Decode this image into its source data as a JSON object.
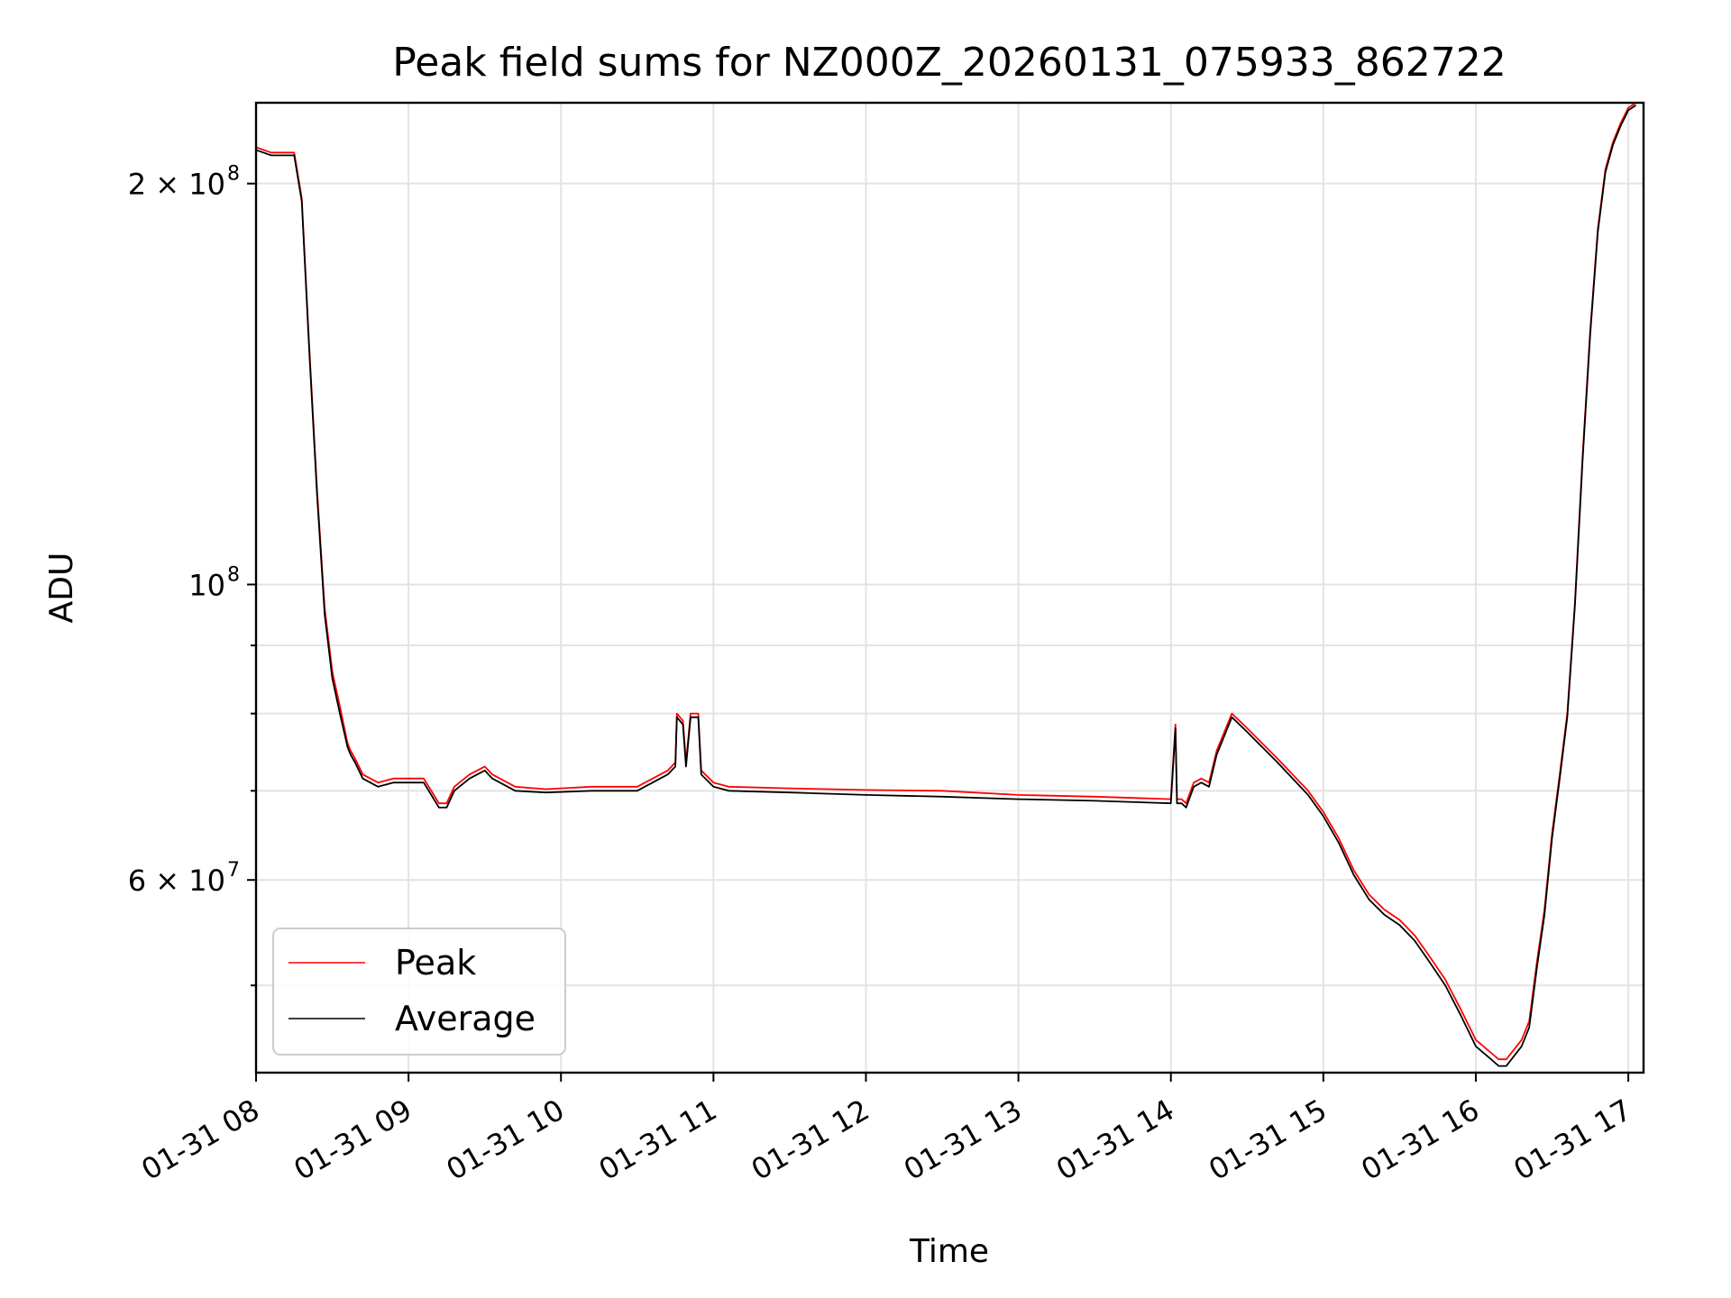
{
  "chart_data": {
    "type": "line",
    "title": "Peak field sums for NZ000Z_20260131_075933_862722",
    "xlabel": "Time",
    "ylabel": "ADU",
    "yscale": "log",
    "grid": true,
    "legend_location": "lower-left",
    "xlim": [
      8.0,
      17.1
    ],
    "ylim": [
      43000000,
      230000000
    ],
    "x_ticks": [
      {
        "value": 8,
        "label": "01-31 08"
      },
      {
        "value": 9,
        "label": "01-31 09"
      },
      {
        "value": 10,
        "label": "01-31 10"
      },
      {
        "value": 11,
        "label": "01-31 11"
      },
      {
        "value": 12,
        "label": "01-31 12"
      },
      {
        "value": 13,
        "label": "01-31 13"
      },
      {
        "value": 14,
        "label": "01-31 14"
      },
      {
        "value": 15,
        "label": "01-31 15"
      },
      {
        "value": 16,
        "label": "01-31 16"
      },
      {
        "value": 17,
        "label": "01-31 17"
      }
    ],
    "y_ticks_major": [
      {
        "value": 60000000,
        "base": "6 × 10",
        "exp": "7"
      },
      {
        "value": 100000000,
        "base": "10",
        "exp": "8"
      },
      {
        "value": 200000000,
        "base": "2 × 10",
        "exp": "8"
      }
    ],
    "y_ticks_minor": [
      50000000,
      70000000,
      80000000,
      90000000
    ],
    "series": [
      {
        "name": "Peak",
        "color": "#ff0000",
        "x": [
          8.0,
          8.1,
          8.25,
          8.3,
          8.35,
          8.4,
          8.45,
          8.5,
          8.55,
          8.6,
          8.62,
          8.65,
          8.7,
          8.8,
          8.9,
          9.0,
          9.1,
          9.2,
          9.25,
          9.3,
          9.4,
          9.5,
          9.55,
          9.7,
          9.9,
          10.2,
          10.5,
          10.7,
          10.75,
          10.76,
          10.8,
          10.82,
          10.85,
          10.9,
          10.92,
          11.0,
          11.1,
          11.5,
          12.0,
          12.5,
          13.0,
          13.5,
          14.0,
          14.03,
          14.04,
          14.07,
          14.1,
          14.15,
          14.2,
          14.25,
          14.3,
          14.4,
          14.5,
          14.7,
          14.9,
          15.0,
          15.1,
          15.2,
          15.3,
          15.4,
          15.5,
          15.6,
          15.7,
          15.8,
          15.9,
          16.0,
          16.1,
          16.15,
          16.2,
          16.3,
          16.35,
          16.4,
          16.45,
          16.5,
          16.55,
          16.6,
          16.65,
          16.7,
          16.75,
          16.8,
          16.85,
          16.9,
          16.95,
          17.0,
          17.05
        ],
        "y": [
          213000000,
          211000000,
          211000000,
          195000000,
          150000000,
          118000000,
          96000000,
          86000000,
          81000000,
          76000000,
          75000000,
          74000000,
          72000000,
          71000000,
          71500000,
          71500000,
          71500000,
          68500000,
          68500000,
          70500000,
          72000000,
          73000000,
          72000000,
          70500000,
          70200000,
          70500000,
          70500000,
          72500000,
          73500000,
          80000000,
          79000000,
          73500000,
          80000000,
          80000000,
          72500000,
          71000000,
          70500000,
          70300000,
          70100000,
          70000000,
          69500000,
          69300000,
          69000000,
          78500000,
          69000000,
          69000000,
          68500000,
          71000000,
          71500000,
          71000000,
          75000000,
          80000000,
          78000000,
          74000000,
          70000000,
          67500000,
          64500000,
          61000000,
          58500000,
          57000000,
          56000000,
          54500000,
          52500000,
          50500000,
          48000000,
          45500000,
          44500000,
          44000000,
          44000000,
          45500000,
          47000000,
          52000000,
          57000000,
          65000000,
          72000000,
          80000000,
          97000000,
          125000000,
          155000000,
          185000000,
          205000000,
          215000000,
          222000000,
          228000000,
          230000000
        ]
      },
      {
        "name": "Average",
        "color": "#000000",
        "x": [
          8.0,
          8.1,
          8.25,
          8.3,
          8.35,
          8.4,
          8.45,
          8.5,
          8.55,
          8.6,
          8.62,
          8.65,
          8.7,
          8.8,
          8.9,
          9.0,
          9.1,
          9.2,
          9.25,
          9.3,
          9.4,
          9.5,
          9.55,
          9.7,
          9.9,
          10.2,
          10.5,
          10.7,
          10.75,
          10.76,
          10.8,
          10.82,
          10.85,
          10.9,
          10.92,
          11.0,
          11.1,
          11.5,
          12.0,
          12.5,
          13.0,
          13.5,
          14.0,
          14.03,
          14.04,
          14.07,
          14.1,
          14.15,
          14.2,
          14.25,
          14.3,
          14.4,
          14.5,
          14.7,
          14.9,
          15.0,
          15.1,
          15.2,
          15.3,
          15.4,
          15.5,
          15.6,
          15.7,
          15.8,
          15.9,
          16.0,
          16.1,
          16.15,
          16.2,
          16.3,
          16.35,
          16.4,
          16.45,
          16.5,
          16.55,
          16.6,
          16.65,
          16.7,
          16.75,
          16.8,
          16.85,
          16.9,
          16.95,
          17.0,
          17.05
        ],
        "y": [
          212000000,
          210000000,
          210000000,
          194000000,
          149000000,
          117000000,
          95000000,
          85000000,
          80000000,
          75500000,
          74500000,
          73500000,
          71500000,
          70500000,
          71000000,
          71000000,
          71000000,
          68000000,
          68000000,
          70000000,
          71500000,
          72500000,
          71500000,
          70000000,
          69800000,
          70000000,
          70000000,
          72000000,
          73000000,
          79500000,
          78500000,
          73000000,
          79500000,
          79500000,
          72000000,
          70500000,
          70000000,
          69800000,
          69500000,
          69300000,
          69000000,
          68800000,
          68500000,
          78000000,
          68500000,
          68500000,
          68000000,
          70500000,
          71000000,
          70500000,
          74500000,
          79500000,
          77500000,
          73500000,
          69500000,
          67000000,
          64000000,
          60500000,
          58000000,
          56500000,
          55500000,
          54000000,
          52000000,
          50000000,
          47500000,
          45000000,
          44000000,
          43500000,
          43500000,
          45000000,
          46500000,
          51500000,
          56500000,
          64500000,
          71500000,
          79500000,
          96500000,
          124000000,
          154000000,
          184000000,
          204000000,
          214000000,
          221000000,
          227000000,
          229000000
        ]
      }
    ]
  }
}
